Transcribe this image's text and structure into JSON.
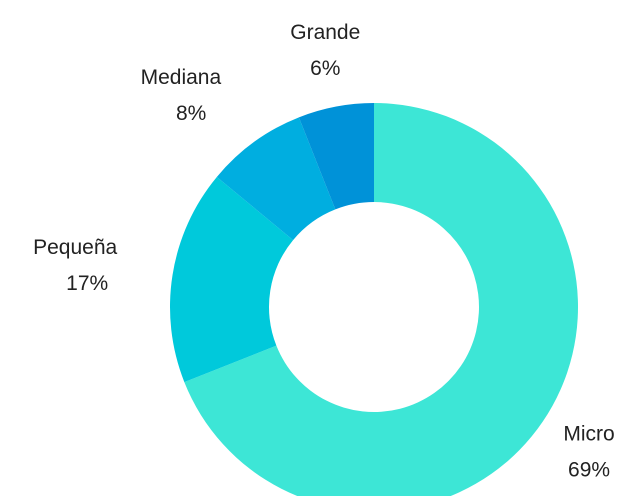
{
  "chart_data": {
    "type": "donut",
    "categories": [
      "Micro",
      "Pequeña",
      "Mediana",
      "Grande"
    ],
    "values": [
      69,
      17,
      8,
      6
    ],
    "value_labels": [
      "69%",
      "17%",
      "8%",
      "6%"
    ],
    "colors": [
      "#3de6d6",
      "#00c9db",
      "#00aee0",
      "#0092d8"
    ]
  }
}
